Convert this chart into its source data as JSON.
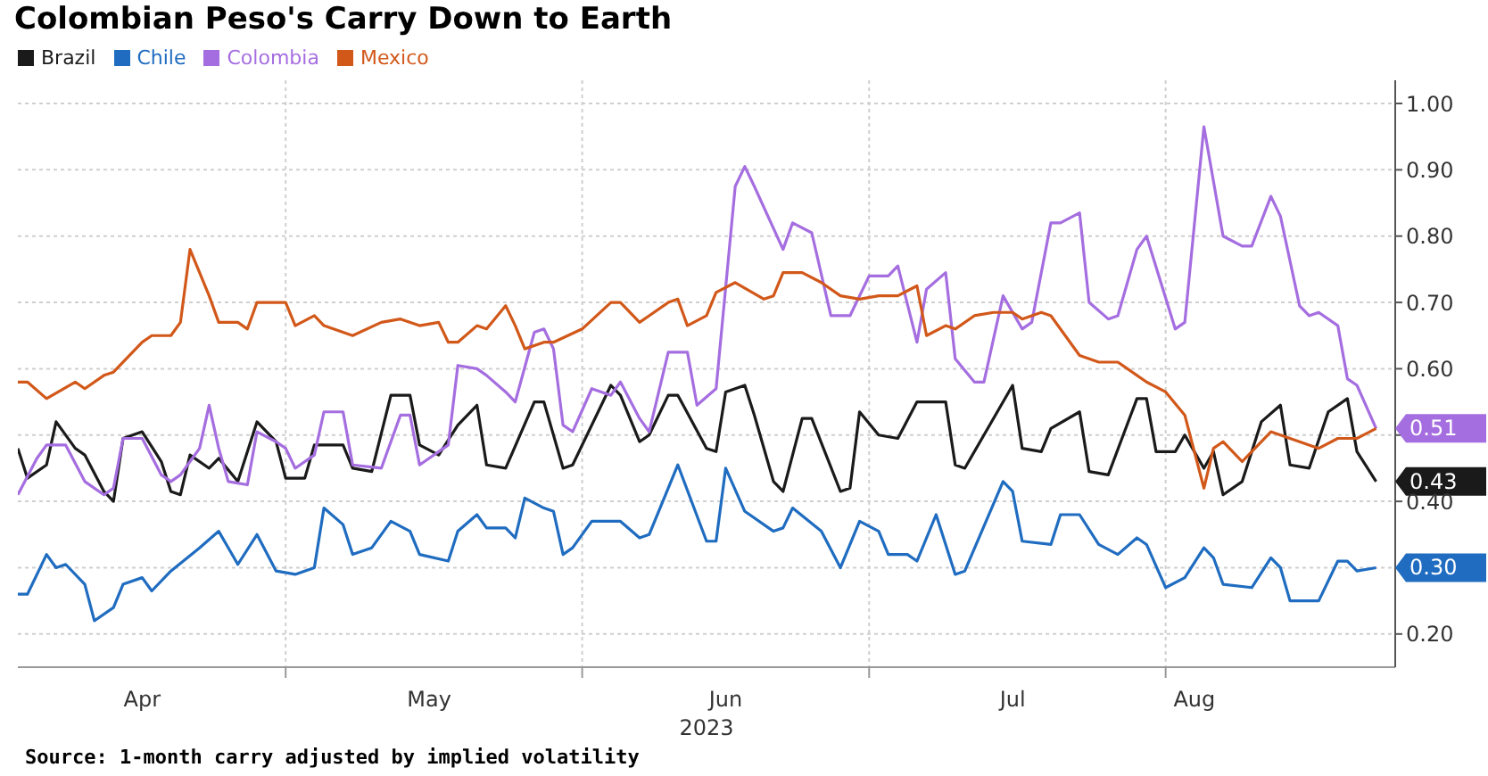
{
  "chart_data": {
    "type": "line",
    "title": "Colombian Peso's Carry Down to Earth",
    "xlabel": "2023",
    "legend": "top left",
    "grid": true,
    "marker": "none",
    "line_style": "solid",
    "xlim": [
      "2023-04-03",
      "2023-08-25"
    ],
    "xticks": [
      {
        "value": "2023-04-16",
        "label": "Apr"
      },
      {
        "value": "2023-05-01",
        "label": null
      },
      {
        "value": "2023-05-16",
        "label": "May"
      },
      {
        "value": "2023-06-01",
        "label": null
      },
      {
        "value": "2023-06-16",
        "label": "Jun"
      },
      {
        "value": "2023-07-01",
        "label": null
      },
      {
        "value": "2023-07-16",
        "label": "Jul"
      },
      {
        "value": "2023-08-01",
        "label": null
      },
      {
        "value": "2023-08-04",
        "label": "Aug"
      }
    ],
    "ylim": [
      0.15,
      1.035
    ],
    "yticks": [
      {
        "value": 0.2,
        "label": "0.20"
      },
      {
        "value": 0.3,
        "label": null
      },
      {
        "value": 0.4,
        "label": "0.40"
      },
      {
        "value": 0.5,
        "label": null
      },
      {
        "value": 0.6,
        "label": "0.60"
      },
      {
        "value": 0.7,
        "label": "0.70"
      },
      {
        "value": 0.8,
        "label": "0.80"
      },
      {
        "value": 0.9,
        "label": "0.90"
      },
      {
        "value": 1.0,
        "label": "1.00"
      }
    ],
    "annotations": [
      {
        "text": "0.51",
        "x": "2023-08-23",
        "y": 0.51
      },
      {
        "text": "0.43",
        "x": "2023-08-23",
        "y": 0.43
      },
      {
        "text": "0.30",
        "x": "2023-08-23",
        "y": 0.3
      },
      "Source: 1-month carry adjusted by implied volatility"
    ],
    "series": [
      {
        "name": "Brazil",
        "color": "#1a1a1a",
        "x": [
          "2023-04-03",
          "2023-04-04",
          "2023-04-06",
          "2023-04-07",
          "2023-04-09",
          "2023-04-10",
          "2023-04-12",
          "2023-04-13",
          "2023-04-14",
          "2023-04-16",
          "2023-04-18",
          "2023-04-19",
          "2023-04-20",
          "2023-04-21",
          "2023-04-23",
          "2023-04-24",
          "2023-04-26",
          "2023-04-28",
          "2023-04-30",
          "2023-05-01",
          "2023-05-03",
          "2023-05-04",
          "2023-05-07",
          "2023-05-08",
          "2023-05-10",
          "2023-05-12",
          "2023-05-14",
          "2023-05-15",
          "2023-05-17",
          "2023-05-19",
          "2023-05-21",
          "2023-05-22",
          "2023-05-24",
          "2023-05-27",
          "2023-05-28",
          "2023-05-30",
          "2023-05-31",
          "2023-06-04",
          "2023-06-05",
          "2023-06-07",
          "2023-06-08",
          "2023-06-10",
          "2023-06-11",
          "2023-06-14",
          "2023-06-15",
          "2023-06-16",
          "2023-06-18",
          "2023-06-19",
          "2023-06-21",
          "2023-06-22",
          "2023-06-24",
          "2023-06-25",
          "2023-06-28",
          "2023-06-29",
          "2023-06-30",
          "2023-07-02",
          "2023-07-04",
          "2023-07-06",
          "2023-07-09",
          "2023-07-10",
          "2023-07-11",
          "2023-07-16",
          "2023-07-17",
          "2023-07-19",
          "2023-07-20",
          "2023-07-23",
          "2023-07-24",
          "2023-07-26",
          "2023-07-29",
          "2023-07-30",
          "2023-07-31",
          "2023-08-02",
          "2023-08-03",
          "2023-08-05",
          "2023-08-06",
          "2023-08-07",
          "2023-08-09",
          "2023-08-11",
          "2023-08-13",
          "2023-08-14",
          "2023-08-16",
          "2023-08-18",
          "2023-08-20",
          "2023-08-21",
          "2023-08-23"
        ],
        "values": [
          0.48,
          0.435,
          0.455,
          0.52,
          0.48,
          0.47,
          0.415,
          0.4,
          0.495,
          0.505,
          0.46,
          0.415,
          0.41,
          0.47,
          0.45,
          0.465,
          0.43,
          0.52,
          0.49,
          0.435,
          0.435,
          0.485,
          0.485,
          0.45,
          0.445,
          0.56,
          0.56,
          0.485,
          0.47,
          0.515,
          0.545,
          0.455,
          0.45,
          0.55,
          0.55,
          0.45,
          0.455,
          0.575,
          0.56,
          0.49,
          0.5,
          0.56,
          0.56,
          0.48,
          0.475,
          0.565,
          0.575,
          0.53,
          0.43,
          0.415,
          0.525,
          0.525,
          0.415,
          0.42,
          0.535,
          0.5,
          0.495,
          0.55,
          0.55,
          0.455,
          0.45,
          0.575,
          0.48,
          0.475,
          0.51,
          0.535,
          0.445,
          0.44,
          0.555,
          0.555,
          0.475,
          0.475,
          0.5,
          0.45,
          0.475,
          0.41,
          0.43,
          0.52,
          0.545,
          0.455,
          0.45,
          0.535,
          0.555,
          0.475,
          0.43
        ]
      },
      {
        "name": "Chile",
        "color": "#1f6cc0",
        "x": [
          "2023-04-03",
          "2023-04-04",
          "2023-04-06",
          "2023-04-07",
          "2023-04-08",
          "2023-04-10",
          "2023-04-11",
          "2023-04-13",
          "2023-04-14",
          "2023-04-16",
          "2023-04-17",
          "2023-04-19",
          "2023-04-22",
          "2023-04-24",
          "2023-04-26",
          "2023-04-28",
          "2023-04-30",
          "2023-05-02",
          "2023-05-04",
          "2023-05-05",
          "2023-05-07",
          "2023-05-08",
          "2023-05-10",
          "2023-05-12",
          "2023-05-14",
          "2023-05-15",
          "2023-05-18",
          "2023-05-19",
          "2023-05-21",
          "2023-05-22",
          "2023-05-24",
          "2023-05-25",
          "2023-05-26",
          "2023-05-28",
          "2023-05-29",
          "2023-05-30",
          "2023-05-31",
          "2023-06-02",
          "2023-06-05",
          "2023-06-07",
          "2023-06-08",
          "2023-06-11",
          "2023-06-14",
          "2023-06-15",
          "2023-06-16",
          "2023-06-18",
          "2023-06-21",
          "2023-06-22",
          "2023-06-23",
          "2023-06-26",
          "2023-06-28",
          "2023-06-30",
          "2023-07-02",
          "2023-07-03",
          "2023-07-05",
          "2023-07-06",
          "2023-07-08",
          "2023-07-10",
          "2023-07-11",
          "2023-07-15",
          "2023-07-16",
          "2023-07-17",
          "2023-07-20",
          "2023-07-21",
          "2023-07-23",
          "2023-07-25",
          "2023-07-27",
          "2023-07-29",
          "2023-07-30",
          "2023-08-01",
          "2023-08-03",
          "2023-08-05",
          "2023-08-06",
          "2023-08-07",
          "2023-08-10",
          "2023-08-12",
          "2023-08-13",
          "2023-08-14",
          "2023-08-17",
          "2023-08-19",
          "2023-08-20",
          "2023-08-21",
          "2023-08-23"
        ],
        "values": [
          0.26,
          0.26,
          0.32,
          0.3,
          0.305,
          0.275,
          0.22,
          0.24,
          0.275,
          0.285,
          0.265,
          0.295,
          0.33,
          0.355,
          0.305,
          0.35,
          0.295,
          0.29,
          0.3,
          0.39,
          0.365,
          0.32,
          0.33,
          0.37,
          0.355,
          0.32,
          0.31,
          0.355,
          0.38,
          0.36,
          0.36,
          0.345,
          0.405,
          0.39,
          0.385,
          0.32,
          0.33,
          0.37,
          0.37,
          0.345,
          0.35,
          0.455,
          0.34,
          0.34,
          0.45,
          0.385,
          0.355,
          0.36,
          0.39,
          0.355,
          0.3,
          0.37,
          0.355,
          0.32,
          0.32,
          0.31,
          0.38,
          0.29,
          0.295,
          0.43,
          0.415,
          0.34,
          0.335,
          0.38,
          0.38,
          0.335,
          0.32,
          0.345,
          0.335,
          0.27,
          0.285,
          0.33,
          0.315,
          0.275,
          0.27,
          0.315,
          0.3,
          0.25,
          0.25,
          0.31,
          0.31,
          0.295,
          0.3
        ]
      },
      {
        "name": "Colombia",
        "color": "#a56ee0",
        "x": [
          "2023-04-03",
          "2023-04-05",
          "2023-04-06",
          "2023-04-08",
          "2023-04-10",
          "2023-04-12",
          "2023-04-13",
          "2023-04-14",
          "2023-04-16",
          "2023-04-18",
          "2023-04-19",
          "2023-04-20",
          "2023-04-22",
          "2023-04-23",
          "2023-04-24",
          "2023-04-25",
          "2023-04-27",
          "2023-04-28",
          "2023-04-30",
          "2023-05-01",
          "2023-05-02",
          "2023-05-04",
          "2023-05-05",
          "2023-05-07",
          "2023-05-08",
          "2023-05-11",
          "2023-05-13",
          "2023-05-14",
          "2023-05-15",
          "2023-05-18",
          "2023-05-19",
          "2023-05-21",
          "2023-05-22",
          "2023-05-24",
          "2023-05-25",
          "2023-05-27",
          "2023-05-28",
          "2023-05-29",
          "2023-05-30",
          "2023-05-31",
          "2023-06-02",
          "2023-06-04",
          "2023-06-05",
          "2023-06-07",
          "2023-06-08",
          "2023-06-10",
          "2023-06-12",
          "2023-06-13",
          "2023-06-15",
          "2023-06-17",
          "2023-06-18",
          "2023-06-19",
          "2023-06-22",
          "2023-06-23",
          "2023-06-25",
          "2023-06-27",
          "2023-06-29",
          "2023-07-01",
          "2023-07-03",
          "2023-07-04",
          "2023-07-06",
          "2023-07-07",
          "2023-07-09",
          "2023-07-10",
          "2023-07-12",
          "2023-07-13",
          "2023-07-15",
          "2023-07-17",
          "2023-07-18",
          "2023-07-20",
          "2023-07-21",
          "2023-07-23",
          "2023-07-24",
          "2023-07-26",
          "2023-07-27",
          "2023-07-29",
          "2023-07-30",
          "2023-08-02",
          "2023-08-03",
          "2023-08-05",
          "2023-08-07",
          "2023-08-09",
          "2023-08-10",
          "2023-08-12",
          "2023-08-13",
          "2023-08-15",
          "2023-08-16",
          "2023-08-17",
          "2023-08-19",
          "2023-08-20",
          "2023-08-21",
          "2023-08-23"
        ],
        "values": [
          0.41,
          0.465,
          0.485,
          0.485,
          0.43,
          0.41,
          0.42,
          0.495,
          0.495,
          0.44,
          0.43,
          0.44,
          0.48,
          0.545,
          0.48,
          0.43,
          0.425,
          0.505,
          0.49,
          0.48,
          0.45,
          0.47,
          0.535,
          0.535,
          0.455,
          0.45,
          0.53,
          0.53,
          0.455,
          0.485,
          0.605,
          0.6,
          0.59,
          0.565,
          0.55,
          0.655,
          0.66,
          0.63,
          0.515,
          0.505,
          0.57,
          0.56,
          0.58,
          0.525,
          0.505,
          0.625,
          0.625,
          0.545,
          0.57,
          0.875,
          0.905,
          0.875,
          0.78,
          0.82,
          0.805,
          0.68,
          0.68,
          0.74,
          0.74,
          0.755,
          0.64,
          0.72,
          0.745,
          0.615,
          0.58,
          0.58,
          0.71,
          0.66,
          0.67,
          0.82,
          0.82,
          0.835,
          0.7,
          0.675,
          0.68,
          0.78,
          0.8,
          0.66,
          0.67,
          0.965,
          0.8,
          0.785,
          0.785,
          0.86,
          0.83,
          0.695,
          0.68,
          0.685,
          0.665,
          0.585,
          0.575,
          0.51
        ]
      },
      {
        "name": "Mexico",
        "color": "#d2581a",
        "x": [
          "2023-04-03",
          "2023-04-04",
          "2023-04-06",
          "2023-04-09",
          "2023-04-10",
          "2023-04-12",
          "2023-04-13",
          "2023-04-16",
          "2023-04-17",
          "2023-04-19",
          "2023-04-20",
          "2023-04-21",
          "2023-04-23",
          "2023-04-24",
          "2023-04-26",
          "2023-04-27",
          "2023-04-28",
          "2023-05-01",
          "2023-05-02",
          "2023-05-04",
          "2023-05-05",
          "2023-05-08",
          "2023-05-11",
          "2023-05-13",
          "2023-05-15",
          "2023-05-17",
          "2023-05-18",
          "2023-05-19",
          "2023-05-21",
          "2023-05-22",
          "2023-05-24",
          "2023-05-25",
          "2023-05-26",
          "2023-05-28",
          "2023-05-29",
          "2023-06-01",
          "2023-06-04",
          "2023-06-05",
          "2023-06-07",
          "2023-06-08",
          "2023-06-10",
          "2023-06-11",
          "2023-06-12",
          "2023-06-14",
          "2023-06-15",
          "2023-06-17",
          "2023-06-20",
          "2023-06-21",
          "2023-06-22",
          "2023-06-24",
          "2023-06-26",
          "2023-06-28",
          "2023-06-30",
          "2023-07-02",
          "2023-07-04",
          "2023-07-06",
          "2023-07-07",
          "2023-07-09",
          "2023-07-10",
          "2023-07-12",
          "2023-07-14",
          "2023-07-16",
          "2023-07-17",
          "2023-07-19",
          "2023-07-20",
          "2023-07-23",
          "2023-07-25",
          "2023-07-27",
          "2023-07-28",
          "2023-07-30",
          "2023-08-01",
          "2023-08-03",
          "2023-08-05",
          "2023-08-06",
          "2023-08-07",
          "2023-08-09",
          "2023-08-12",
          "2023-08-14",
          "2023-08-17",
          "2023-08-19",
          "2023-08-21",
          "2023-08-23"
        ],
        "values": [
          0.58,
          0.58,
          0.555,
          0.58,
          0.57,
          0.59,
          0.595,
          0.64,
          0.65,
          0.65,
          0.67,
          0.78,
          0.71,
          0.67,
          0.67,
          0.66,
          0.7,
          0.7,
          0.665,
          0.68,
          0.665,
          0.65,
          0.67,
          0.675,
          0.665,
          0.67,
          0.64,
          0.64,
          0.665,
          0.66,
          0.695,
          0.665,
          0.63,
          0.64,
          0.64,
          0.66,
          0.7,
          0.7,
          0.67,
          0.68,
          0.7,
          0.705,
          0.665,
          0.68,
          0.715,
          0.73,
          0.705,
          0.71,
          0.745,
          0.745,
          0.73,
          0.71,
          0.705,
          0.71,
          0.71,
          0.725,
          0.65,
          0.665,
          0.66,
          0.68,
          0.685,
          0.685,
          0.675,
          0.685,
          0.68,
          0.62,
          0.61,
          0.61,
          0.6,
          0.58,
          0.565,
          0.53,
          0.42,
          0.48,
          0.49,
          0.46,
          0.505,
          0.495,
          0.48,
          0.495,
          0.495,
          0.51
        ]
      }
    ]
  }
}
